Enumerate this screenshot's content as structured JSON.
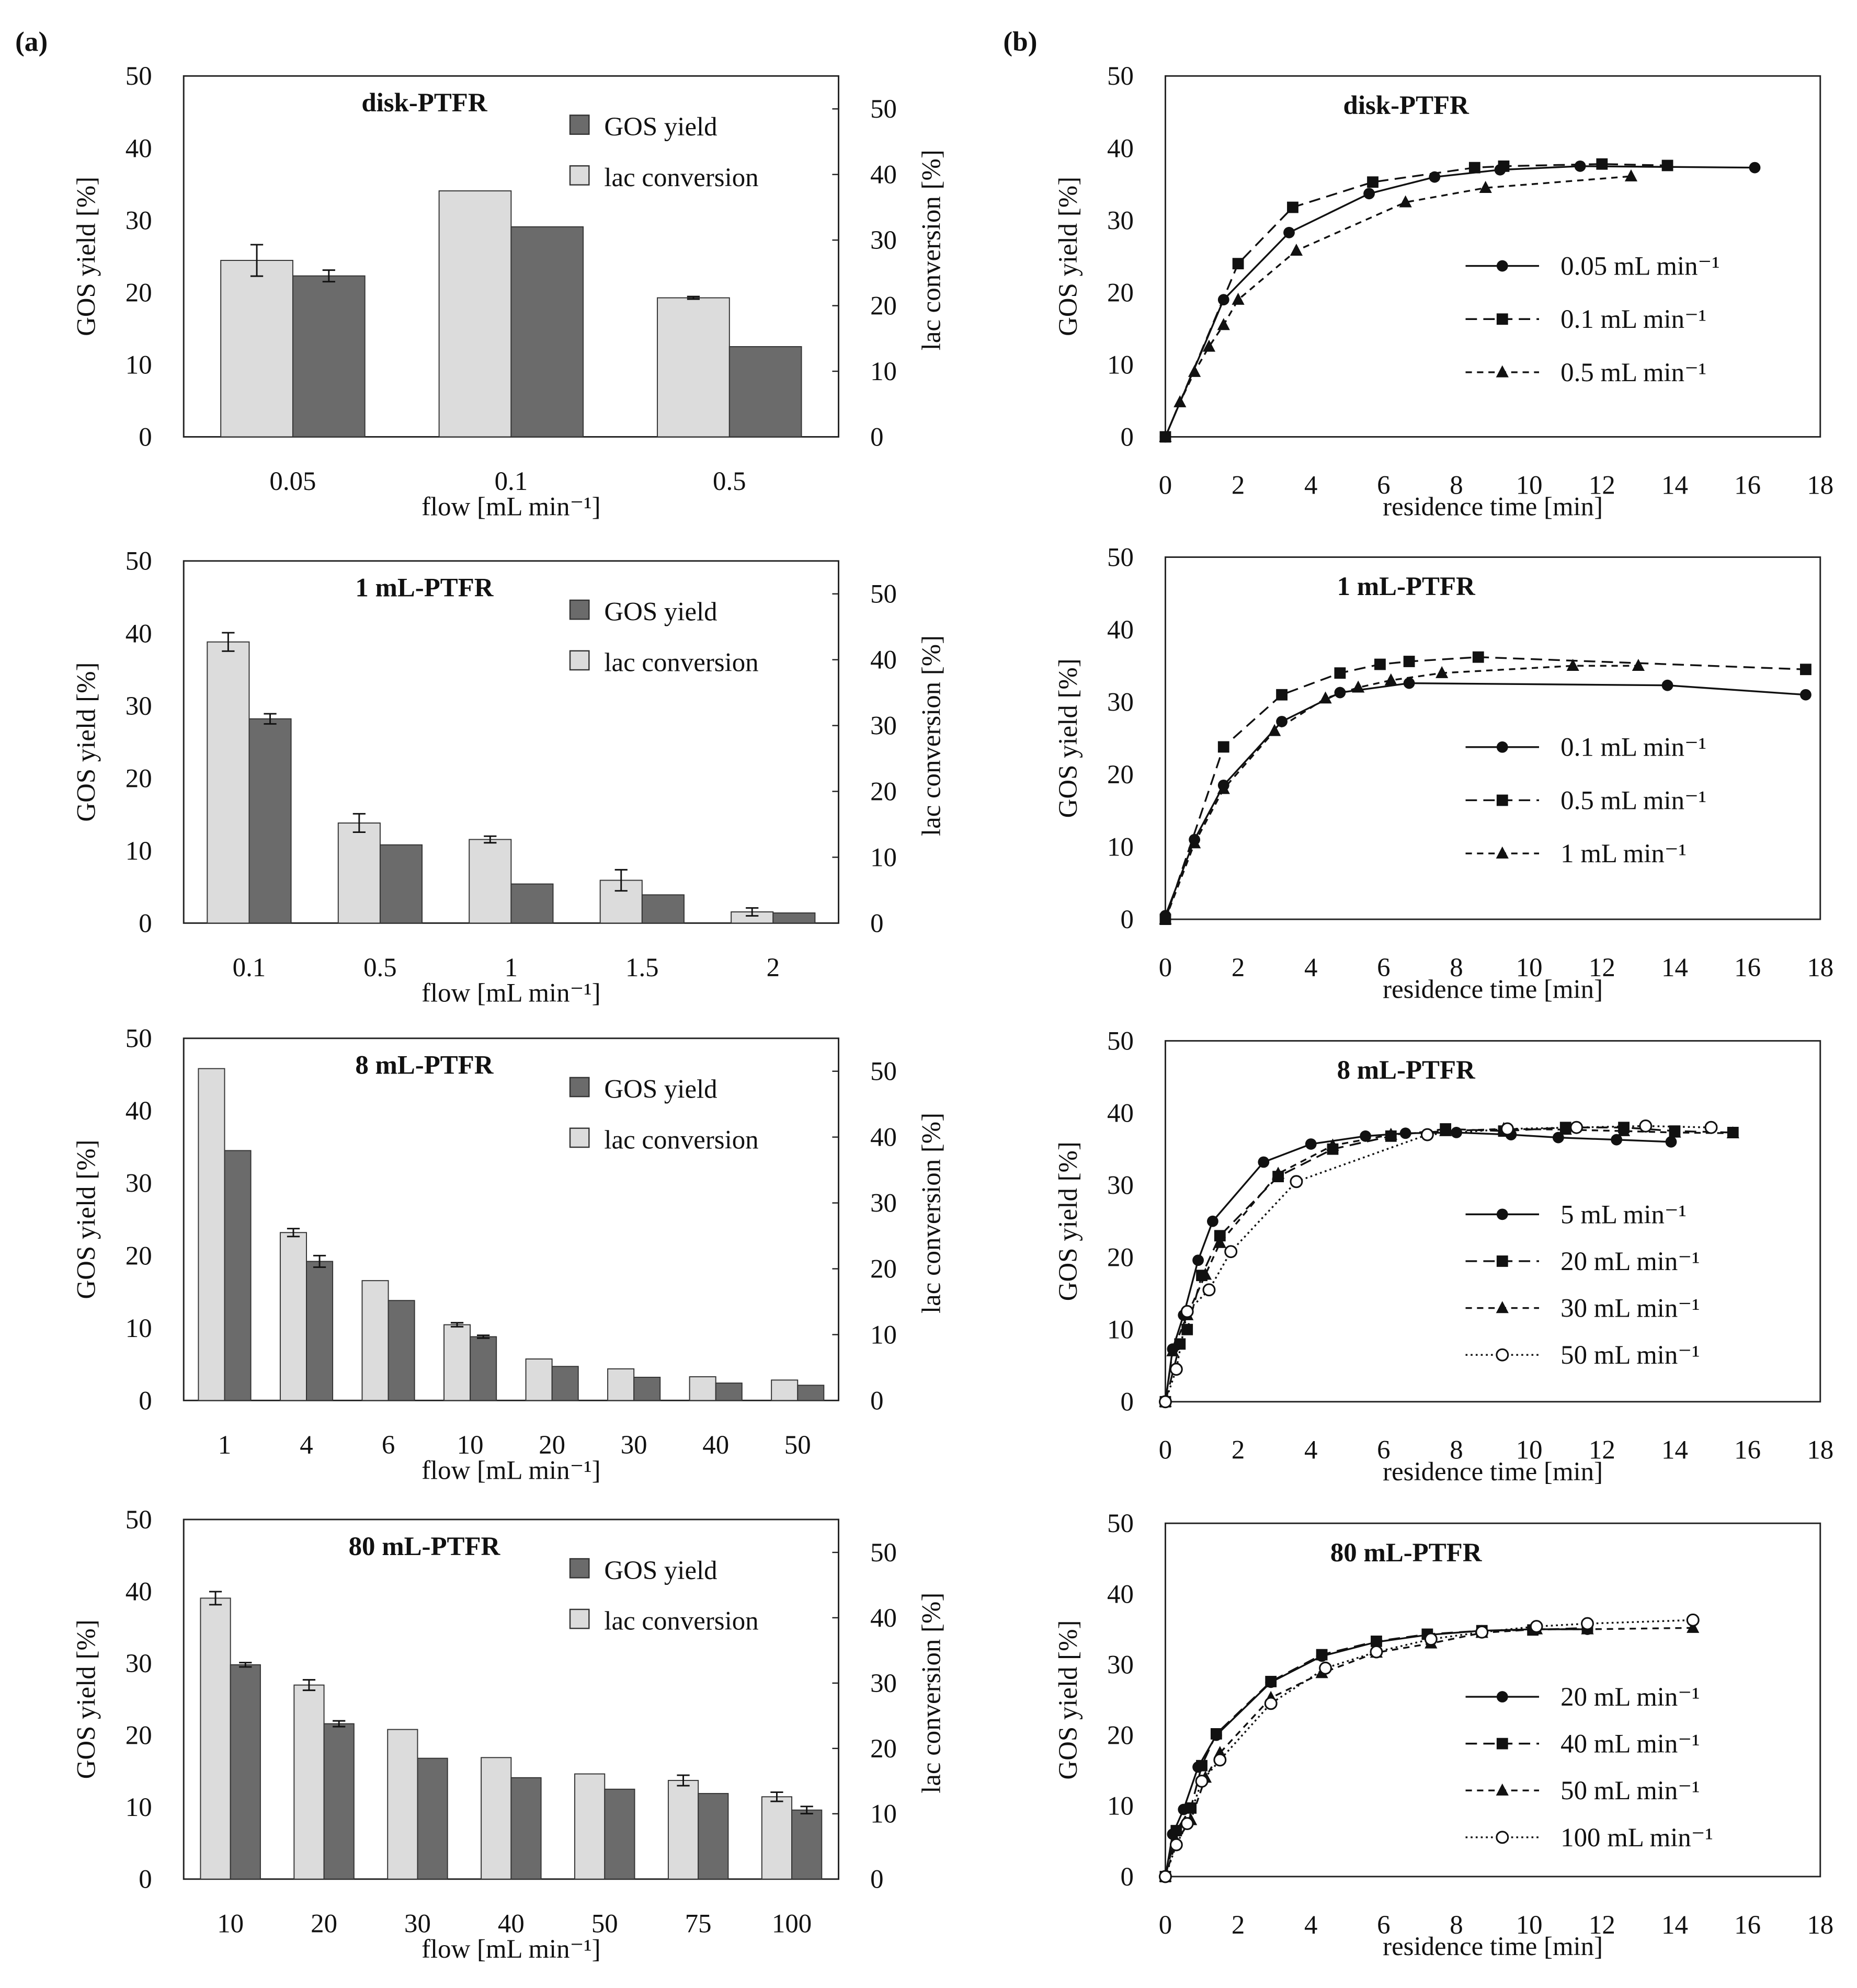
{
  "panel_labels": {
    "a": "(a)",
    "b": "(b)"
  },
  "colors": {
    "gos": "#6b6b6b",
    "lac": "#dcdcdc",
    "axis": "#222222"
  },
  "chart_data": [
    {
      "type": "bar",
      "title": "disk-PTFR",
      "categories": [
        "0.05",
        "0.1",
        "0.5"
      ],
      "xlabel": "flow [mL min⁻¹]",
      "ylabel": "GOS yield [%]",
      "y2label": "lac conversion [%]",
      "ylim": [
        0,
        50
      ],
      "y2ticks": [
        0,
        10,
        20,
        30,
        40,
        50
      ],
      "yticks": [
        0,
        10,
        20,
        30,
        40,
        50
      ],
      "legend": [
        "GOS yield",
        "lac conversion"
      ],
      "series": [
        {
          "name": "lac conversion",
          "axis": "right",
          "values": [
            26.9,
            37.5,
            21.2
          ],
          "errors": [
            2.4,
            0,
            0.2
          ]
        },
        {
          "name": "GOS yield",
          "axis": "left",
          "values": [
            22.3,
            29.1,
            12.5
          ],
          "errors": [
            0.8,
            0,
            0
          ]
        }
      ]
    },
    {
      "type": "bar",
      "title": "1 mL-PTFR",
      "categories": [
        "0.1",
        "0.5",
        "1",
        "1.5",
        "2"
      ],
      "xlabel": "flow [mL min⁻¹]",
      "ylabel": "GOS yield [%]",
      "y2label": "lac conversion [%]",
      "ylim": [
        0,
        50
      ],
      "y2ticks": [
        0,
        10,
        20,
        30,
        40,
        50
      ],
      "yticks": [
        0,
        10,
        20,
        30,
        40,
        50
      ],
      "legend": [
        "GOS yield",
        "lac conversion"
      ],
      "series": [
        {
          "name": "lac conversion",
          "axis": "right",
          "values": [
            42.7,
            15.2,
            12.7,
            6.5,
            1.7
          ],
          "errors": [
            1.4,
            1.4,
            0.5,
            1.6,
            0.6
          ]
        },
        {
          "name": "GOS yield",
          "axis": "left",
          "values": [
            28.2,
            10.8,
            5.4,
            3.9,
            1.4
          ],
          "errors": [
            0.7,
            0,
            0,
            0,
            0
          ]
        }
      ]
    },
    {
      "type": "bar",
      "title": "8 mL-PTFR",
      "categories": [
        "1",
        "4",
        "6",
        "10",
        "20",
        "30",
        "40",
        "50"
      ],
      "xlabel": "flow [mL min⁻¹]",
      "ylabel": "GOS yield [%]",
      "y2label": "lac conversion [%]",
      "ylim": [
        0,
        50
      ],
      "y2ticks": [
        0,
        10,
        20,
        30,
        40,
        50
      ],
      "yticks": [
        0,
        10,
        20,
        30,
        40,
        50
      ],
      "legend": [
        "GOS yield",
        "lac conversion"
      ],
      "series": [
        {
          "name": "lac conversion",
          "axis": "right",
          "values": [
            50.4,
            25.5,
            18.2,
            11.5,
            6.3,
            4.8,
            3.6,
            3.1
          ],
          "errors": [
            0,
            0.6,
            0,
            0.3,
            0,
            0,
            0,
            0
          ]
        },
        {
          "name": "GOS yield",
          "axis": "left",
          "values": [
            34.5,
            19.2,
            13.8,
            8.8,
            4.7,
            3.2,
            2.4,
            2.1
          ],
          "errors": [
            0,
            0.8,
            0,
            0.2,
            0,
            0,
            0,
            0
          ]
        }
      ]
    },
    {
      "type": "bar",
      "title": "80 mL-PTFR",
      "categories": [
        "10",
        "20",
        "30",
        "40",
        "50",
        "75",
        "100"
      ],
      "xlabel": "flow [mL min⁻¹]",
      "ylabel": "GOS yield [%]",
      "y2label": "lac conversion [%]",
      "ylim": [
        0,
        50
      ],
      "y2ticks": [
        0,
        10,
        20,
        30,
        40,
        50
      ],
      "yticks": [
        0,
        10,
        20,
        30,
        40,
        50
      ],
      "legend": [
        "GOS yield",
        "lac conversion"
      ],
      "series": [
        {
          "name": "lac conversion",
          "axis": "right",
          "values": [
            43.0,
            29.7,
            22.9,
            18.6,
            16.1,
            15.1,
            12.6
          ],
          "errors": [
            1.0,
            0.8,
            0,
            0,
            0,
            0.8,
            0.7
          ]
        },
        {
          "name": "GOS yield",
          "axis": "left",
          "values": [
            29.8,
            21.6,
            16.8,
            14.1,
            12.5,
            11.9,
            9.6
          ],
          "errors": [
            0.3,
            0.4,
            0,
            0,
            0,
            0,
            0.5
          ]
        }
      ]
    },
    {
      "type": "line",
      "title": "disk-PTFR",
      "xlabel": "residence time [min]",
      "ylabel": "GOS yield [%]",
      "xlim": [
        0,
        18
      ],
      "ylim": [
        0,
        50
      ],
      "xticks": [
        0,
        2,
        4,
        6,
        8,
        10,
        12,
        14,
        16,
        18
      ],
      "yticks": [
        0,
        10,
        20,
        30,
        40,
        50
      ],
      "series": [
        {
          "name": "0.05 mL min⁻¹",
          "marker": "circle",
          "line": "solid",
          "x": [
            0,
            1.6,
            3.4,
            5.6,
            7.4,
            9.2,
            11.4,
            16.2
          ],
          "y": [
            0,
            19,
            28.3,
            33.7,
            36,
            37,
            37.5,
            37.3
          ]
        },
        {
          "name": "0.1 mL min⁻¹",
          "marker": "square",
          "line": "longdash",
          "x": [
            0,
            2,
            3.5,
            5.7,
            8.5,
            9.3,
            12,
            13.8
          ],
          "y": [
            0,
            24,
            31.8,
            35.3,
            37.3,
            37.5,
            37.8,
            37.6
          ]
        },
        {
          "name": "0.5 mL min⁻¹",
          "marker": "triangle",
          "line": "dash",
          "x": [
            0,
            0.4,
            0.8,
            1.2,
            1.6,
            2,
            3.6,
            6.6,
            8.8,
            12.8
          ],
          "y": [
            0,
            4.8,
            9,
            12.5,
            15.5,
            19,
            25.8,
            32.5,
            34.5,
            36.1
          ]
        }
      ]
    },
    {
      "type": "line",
      "title": "1 mL-PTFR",
      "xlabel": "residence time [min]",
      "ylabel": "GOS yield [%]",
      "xlim": [
        0,
        18
      ],
      "ylim": [
        0,
        50
      ],
      "xticks": [
        0,
        2,
        4,
        6,
        8,
        10,
        12,
        14,
        16,
        18
      ],
      "yticks": [
        0,
        10,
        20,
        30,
        40,
        50
      ],
      "series": [
        {
          "name": "0.1 mL min⁻¹",
          "marker": "circle",
          "line": "solid",
          "x": [
            0,
            0.8,
            1.6,
            3.2,
            4.8,
            6.7,
            13.8,
            17.6
          ],
          "y": [
            0.5,
            11,
            18.5,
            27.3,
            31.3,
            32.6,
            32.3,
            31
          ]
        },
        {
          "name": "0.5 mL min⁻¹",
          "marker": "square",
          "line": "longdash",
          "x": [
            0,
            1.6,
            3.2,
            4.8,
            5.9,
            6.7,
            8.6,
            17.6
          ],
          "y": [
            0,
            23.8,
            31,
            34,
            35.2,
            35.6,
            36.2,
            34.5
          ]
        },
        {
          "name": "1 mL min⁻¹",
          "marker": "triangle",
          "line": "dash",
          "x": [
            0,
            0.8,
            1.6,
            3,
            4.4,
            5.3,
            6.2,
            7.6,
            11.2,
            13
          ],
          "y": [
            0,
            10.5,
            18,
            26,
            30.5,
            32,
            33,
            34,
            35,
            35
          ]
        }
      ]
    },
    {
      "type": "line",
      "title": "8 mL-PTFR",
      "xlabel": "residence time [min]",
      "ylabel": "GOS yield [%]",
      "xlim": [
        0,
        18
      ],
      "ylim": [
        0,
        50
      ],
      "xticks": [
        0,
        2,
        4,
        6,
        8,
        10,
        12,
        14,
        16,
        18
      ],
      "yticks": [
        0,
        10,
        20,
        30,
        40,
        50
      ],
      "series": [
        {
          "name": "5 mL min⁻¹",
          "marker": "circle",
          "line": "solid",
          "x": [
            0,
            0.2,
            0.5,
            0.9,
            1.3,
            2.7,
            4,
            5.5,
            6.6,
            8,
            9.5,
            10.8,
            12.4,
            13.9
          ],
          "y": [
            0,
            7.3,
            12,
            19.6,
            25,
            33.2,
            35.7,
            36.8,
            37.2,
            37.3,
            37,
            36.6,
            36.3,
            36
          ]
        },
        {
          "name": "20 mL min⁻¹",
          "marker": "square",
          "line": "longdash",
          "x": [
            0,
            0.4,
            0.6,
            1,
            1.5,
            3.1,
            4.6,
            6.2,
            7.7,
            9.3,
            11,
            12.6,
            14,
            15.6
          ],
          "y": [
            0,
            8,
            10,
            17.5,
            23,
            31.2,
            35,
            36.8,
            37.8,
            37.5,
            38,
            38,
            37.5,
            37.3
          ]
        },
        {
          "name": "30 mL min⁻¹",
          "marker": "triangle",
          "line": "dash",
          "x": [
            0,
            0.2,
            0.6,
            1.1,
            1.5,
            3.1,
            4.6,
            6.2,
            7.7,
            9.3,
            11,
            12.6,
            14,
            15.6
          ],
          "y": [
            0,
            7,
            12,
            17.6,
            22,
            31.6,
            35.5,
            37,
            37.5,
            37.8,
            37.7,
            37.5,
            37.3,
            37.2
          ]
        },
        {
          "name": "50 mL min⁻¹",
          "marker": "open-circle",
          "line": "dot",
          "x": [
            0,
            0.3,
            0.6,
            1.2,
            1.8,
            3.6,
            7.2,
            9.4,
            11.3,
            13.2,
            15
          ],
          "y": [
            0,
            4.5,
            12.5,
            15.5,
            20.8,
            30.5,
            37,
            37.8,
            38,
            38.2,
            38
          ]
        }
      ]
    },
    {
      "type": "line",
      "title": "80 mL-PTFR",
      "xlabel": "residence time [min]",
      "ylabel": "GOS yield  [%]",
      "xlim": [
        0,
        18
      ],
      "ylim": [
        0,
        50
      ],
      "xticks": [
        0,
        2,
        4,
        6,
        8,
        10,
        12,
        14,
        16,
        18
      ],
      "yticks": [
        0,
        10,
        20,
        30,
        40,
        50
      ],
      "series": [
        {
          "name": "20 mL min⁻¹",
          "marker": "circle",
          "line": "solid",
          "x": [
            0,
            0.2,
            0.5,
            0.9,
            1.4,
            2.9,
            4.3,
            5.8,
            7.2,
            8.7,
            10.1,
            11.6
          ],
          "y": [
            0,
            6,
            9.5,
            15.5,
            20,
            27.5,
            31.2,
            33.2,
            34.2,
            34.8,
            35,
            35
          ]
        },
        {
          "name": "40 mL min⁻¹",
          "marker": "square",
          "line": "longdash",
          "x": [
            0,
            0.3,
            0.7,
            1,
            1.4,
            2.9,
            4.3,
            5.8,
            7.2,
            8.7,
            10.1,
            11.6
          ],
          "y": [
            0,
            6.5,
            9.7,
            15.7,
            20.2,
            27.6,
            31.4,
            33.3,
            34.3,
            34.8,
            34.9,
            35.2
          ]
        },
        {
          "name": "50 mL min⁻¹",
          "marker": "triangle",
          "line": "dash",
          "x": [
            0,
            0.3,
            0.7,
            1.1,
            1.5,
            2.9,
            4.3,
            5.8,
            7.3,
            8.7,
            10.2,
            11.6,
            14.5
          ],
          "y": [
            0,
            5,
            8,
            14,
            17.5,
            25.3,
            28.8,
            31.7,
            33,
            34.5,
            35,
            35,
            35.2
          ]
        },
        {
          "name": "100 mL min⁻¹",
          "marker": "open-circle",
          "line": "dot",
          "x": [
            0,
            0.3,
            0.6,
            1,
            1.5,
            2.9,
            4.4,
            5.8,
            7.3,
            8.7,
            10.2,
            11.6,
            14.5
          ],
          "y": [
            0,
            4.5,
            7.5,
            13.5,
            16.5,
            24.5,
            29.5,
            31.8,
            33.6,
            34.6,
            35.4,
            35.8,
            36.3
          ]
        }
      ]
    }
  ]
}
